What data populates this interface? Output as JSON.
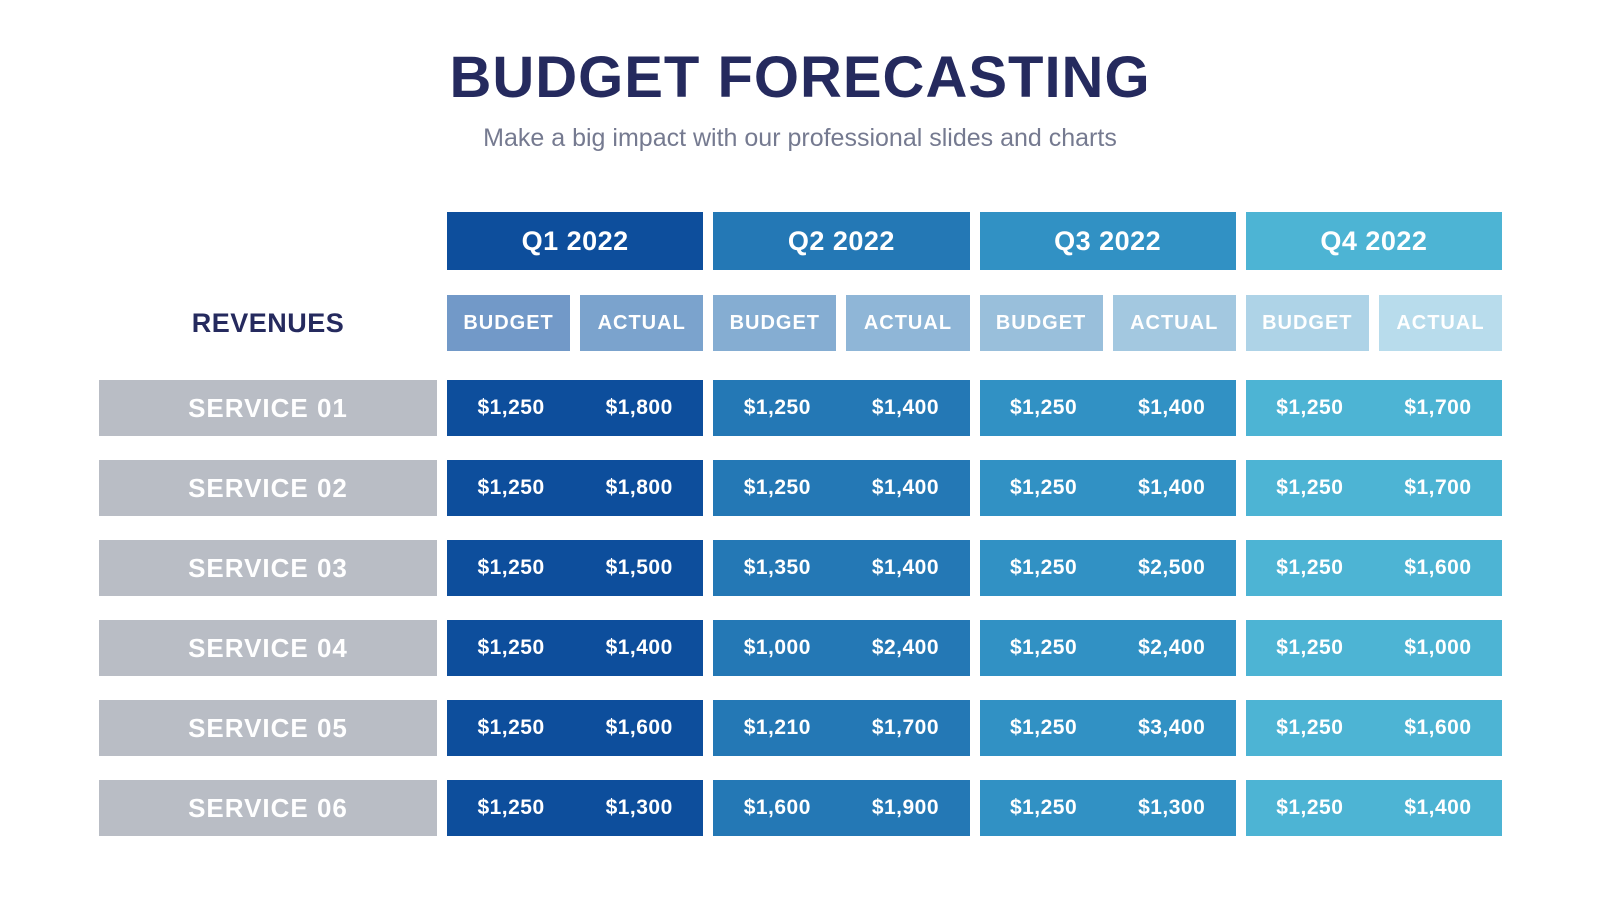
{
  "header": {
    "title": "BUDGET FORECASTING",
    "subtitle": "Make a big impact with our professional slides and charts"
  },
  "colors": {
    "title_text": "#252a5e",
    "subtitle_text": "#757a90",
    "service_label_bg": "#b9bdc5",
    "cell_text": "#ffffff",
    "page_bg": "#ffffff"
  },
  "table": {
    "row_group_label": "REVENUES",
    "quarters": [
      {
        "label": "Q1 2022",
        "color": "#0d4e9c",
        "budget_label": "BUDGET",
        "actual_label": "ACTUAL",
        "budget_header_color": "#7299c8",
        "actual_header_color": "#7ba3cd"
      },
      {
        "label": "Q2 2022",
        "color": "#2478b5",
        "budget_label": "BUDGET",
        "actual_label": "ACTUAL",
        "budget_header_color": "#85add2",
        "actual_header_color": "#8fb6d7"
      },
      {
        "label": "Q3 2022",
        "color": "#3191c4",
        "budget_label": "BUDGET",
        "actual_label": "ACTUAL",
        "budget_header_color": "#99bfdb",
        "actual_header_color": "#a3c8e0"
      },
      {
        "label": "Q4 2022",
        "color": "#4db4d4",
        "budget_label": "BUDGET",
        "actual_label": "ACTUAL",
        "budget_header_color": "#aed3e7",
        "actual_header_color": "#b8dcec"
      }
    ]
  },
  "chart_data": {
    "type": "table",
    "title": "BUDGET FORECASTING",
    "subtitle": "Make a big impact with our professional slides and charts",
    "row_group_label": "REVENUES",
    "column_groups": [
      "Q1 2022",
      "Q2 2022",
      "Q3 2022",
      "Q4 2022"
    ],
    "sub_columns": [
      "BUDGET",
      "ACTUAL"
    ],
    "value_format": "$#,##0",
    "rows": [
      {
        "label": "SERVICE 01",
        "values": [
          [
            1250,
            1800
          ],
          [
            1250,
            1400
          ],
          [
            1250,
            1400
          ],
          [
            1250,
            1700
          ]
        ]
      },
      {
        "label": "SERVICE 02",
        "values": [
          [
            1250,
            1800
          ],
          [
            1250,
            1400
          ],
          [
            1250,
            1400
          ],
          [
            1250,
            1700
          ]
        ]
      },
      {
        "label": "SERVICE 03",
        "values": [
          [
            1250,
            1500
          ],
          [
            1350,
            1400
          ],
          [
            1250,
            2500
          ],
          [
            1250,
            1600
          ]
        ]
      },
      {
        "label": "SERVICE 04",
        "values": [
          [
            1250,
            1400
          ],
          [
            1000,
            2400
          ],
          [
            1250,
            2400
          ],
          [
            1250,
            1000
          ]
        ]
      },
      {
        "label": "SERVICE 05",
        "values": [
          [
            1250,
            1600
          ],
          [
            1210,
            1700
          ],
          [
            1250,
            3400
          ],
          [
            1250,
            1600
          ]
        ]
      },
      {
        "label": "SERVICE 06",
        "values": [
          [
            1250,
            1300
          ],
          [
            1600,
            1900
          ],
          [
            1250,
            1300
          ],
          [
            1250,
            1400
          ]
        ]
      }
    ]
  }
}
